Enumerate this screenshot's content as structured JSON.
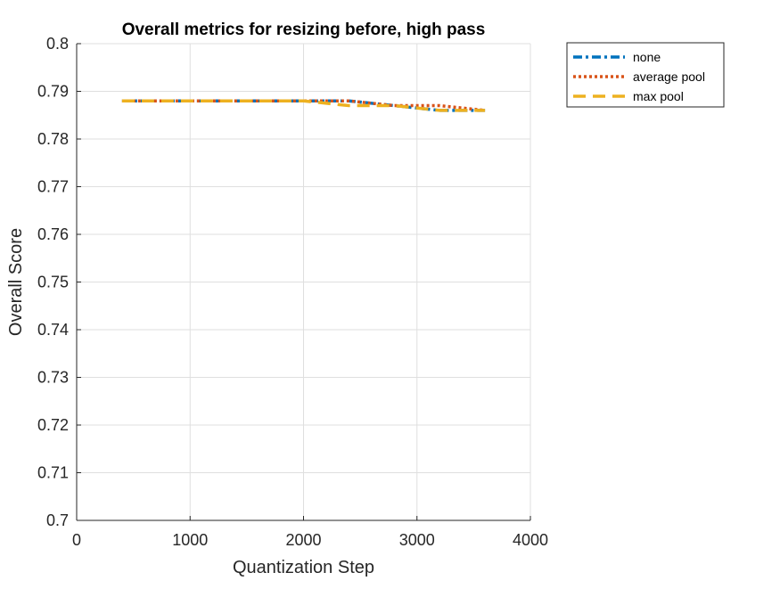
{
  "chart_data": {
    "type": "line",
    "title": "Overall metrics for resizing before, high pass",
    "xlabel": "Quantization Step",
    "ylabel": "Overall Score",
    "xlim": [
      0,
      4000
    ],
    "ylim": [
      0.7,
      0.8
    ],
    "xticks": [
      0,
      1000,
      2000,
      3000,
      4000
    ],
    "xtick_labels": [
      "0",
      "1000",
      "2000",
      "3000",
      "4000"
    ],
    "yticks": [
      0.7,
      0.71,
      0.72,
      0.73,
      0.74,
      0.75,
      0.76,
      0.77,
      0.78,
      0.79,
      0.8
    ],
    "ytick_labels": [
      "0.7",
      "0.71",
      "0.72",
      "0.73",
      "0.74",
      "0.75",
      "0.76",
      "0.77",
      "0.78",
      "0.79",
      "0.8"
    ],
    "grid": true,
    "legend_position": "outside top-right",
    "series": [
      {
        "name": "none",
        "color": "#0072BD",
        "line_style": "dash-dot",
        "x": [
          400,
          800,
          1200,
          1600,
          2000,
          2400,
          2800,
          3200,
          3600
        ],
        "y": [
          0.788,
          0.788,
          0.788,
          0.788,
          0.788,
          0.788,
          0.787,
          0.786,
          0.786
        ]
      },
      {
        "name": "average pool",
        "color": "#D95319",
        "line_style": "dotted",
        "x": [
          400,
          800,
          1200,
          1600,
          2000,
          2400,
          2800,
          3200,
          3600
        ],
        "y": [
          0.788,
          0.788,
          0.788,
          0.788,
          0.788,
          0.788,
          0.787,
          0.787,
          0.786
        ]
      },
      {
        "name": "max pool",
        "color": "#EDB120",
        "line_style": "dashed",
        "x": [
          400,
          800,
          1200,
          1600,
          2000,
          2400,
          2800,
          3200,
          3600
        ],
        "y": [
          0.788,
          0.788,
          0.788,
          0.788,
          0.788,
          0.787,
          0.787,
          0.786,
          0.786
        ]
      }
    ]
  }
}
